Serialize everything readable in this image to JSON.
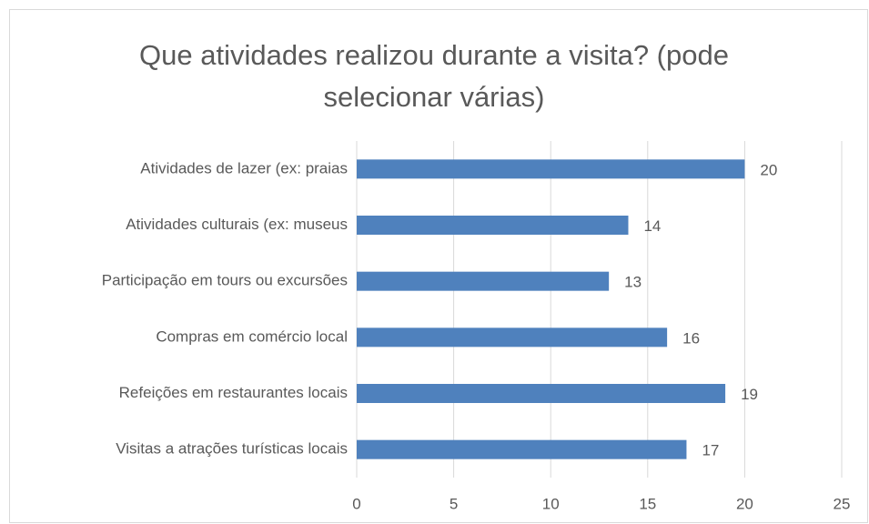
{
  "chart_data": {
    "type": "bar",
    "orientation": "horizontal",
    "title": "Que atividades realizou durante a visita? (pode selecionar várias)",
    "categories": [
      "Atividades de lazer (ex: praias",
      "Atividades culturais (ex: museus",
      "Participação em tours ou excursões",
      "Compras em comércio local",
      "Refeições em restaurantes locais",
      "Visitas a atrações turísticas locais"
    ],
    "values": [
      20,
      14,
      13,
      16,
      19,
      17
    ],
    "color": "#4f81bd",
    "xlim": [
      0,
      25
    ],
    "xticks": [
      0,
      5,
      10,
      15,
      20,
      25
    ],
    "grid": true
  }
}
